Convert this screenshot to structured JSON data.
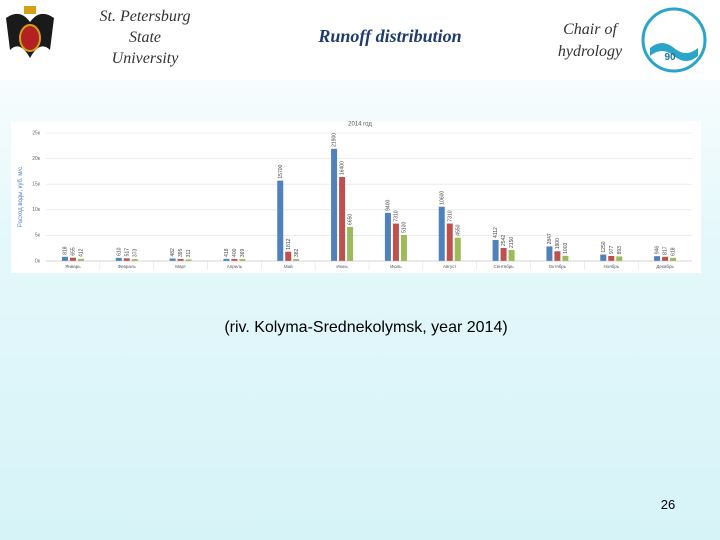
{
  "header": {
    "left": [
      "St. Petersburg",
      "State",
      "University"
    ],
    "title": "Runoff distribution",
    "right": [
      "Chair of",
      "hydrology"
    ],
    "logo_text": "90"
  },
  "chart_data": {
    "type": "bar",
    "title": "2014 год",
    "y_label": "Расход воды, куб. м/с",
    "categories": [
      "Январь",
      "Февраль",
      "Март",
      "Апрель",
      "Май",
      "Июнь",
      "Июль",
      "Август",
      "Сентябрь",
      "Октябрь",
      "Ноябрь",
      "Декабрь"
    ],
    "series": [
      {
        "color": "#4f81bd",
        "values": [
          818,
          610,
          482,
          418,
          15700,
          21900,
          9400,
          10600,
          4112,
          2847,
          1250,
          946
        ]
      },
      {
        "color": "#c0504d",
        "values": [
          655,
          517,
          395,
          400,
          1812,
          16400,
          7310,
          7310,
          2542,
          1900,
          977,
          817
        ]
      },
      {
        "color": "#9bbb59",
        "values": [
          412,
          373,
          311,
          369,
          382,
          6650,
          5100,
          4550,
          2150,
          1003,
          893,
          618
        ]
      }
    ],
    "ylim": [
      0,
      25000
    ],
    "yticks": [
      {
        "value": 0,
        "label": "0к"
      },
      {
        "value": 5000,
        "label": "5к"
      },
      {
        "value": 10000,
        "label": "10к"
      },
      {
        "value": 15000,
        "label": "15к"
      },
      {
        "value": 20000,
        "label": "20к"
      },
      {
        "value": 25000,
        "label": "25к"
      }
    ],
    "grid": true
  },
  "caption": "(riv. Kolyma-Srednekolymsk, year 2014)",
  "page_number": "26"
}
